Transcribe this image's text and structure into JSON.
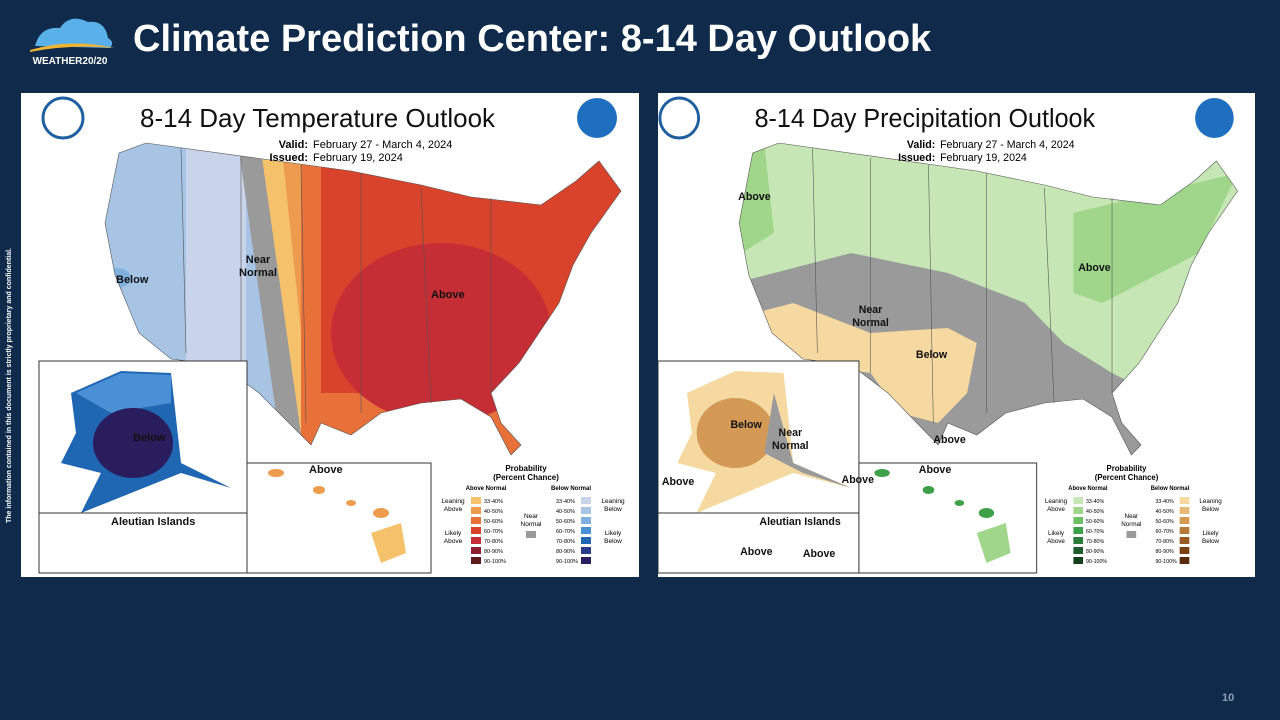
{
  "header": {
    "logo": "WEATHER20/20",
    "title": "Climate Prediction Center: 8-14 Day Outlook"
  },
  "side_note": "The information contained in this document is strictly proprietary and confidential.",
  "page_number": "10",
  "maps": [
    {
      "title": "8-14 Day Temperature Outlook",
      "valid_label": "Valid:",
      "valid": "February 27 - March 4, 2024",
      "issued_label": "Issued:",
      "issued": "February 19, 2024",
      "labels": [
        [
          "Below"
        ],
        [
          "Near",
          "Normal"
        ],
        [
          "Above"
        ],
        [
          "Below"
        ],
        [
          "Above"
        ],
        [
          "Aleutian Islands"
        ]
      ],
      "legend": {
        "title": "Probability",
        "subtitle": "(Percent Chance)",
        "above_header": "Above Normal",
        "below_header": "Below Normal",
        "leaning_above": [
          "Leaning",
          "Above"
        ],
        "likely_above": [
          "Likely",
          "Above"
        ],
        "near": [
          "Near",
          "Normal"
        ],
        "leaning_below": [
          "Leaning",
          "Below"
        ],
        "likely_below": [
          "Likely",
          "Below"
        ],
        "ranges": [
          "33-40%",
          "40-50%",
          "50-60%",
          "60-70%",
          "70-80%",
          "80-90%",
          "90-100%"
        ],
        "above_colors": [
          "#f5c26b",
          "#ef9b4d",
          "#e8713a",
          "#d9432b",
          "#c62e35",
          "#8f1f2e",
          "#5c1a1a"
        ],
        "below_colors": [
          "#c9d3ea",
          "#a7c4e5",
          "#7fb0e0",
          "#4a90d4",
          "#1f66b3",
          "#2b3b8c",
          "#2a1d5e"
        ],
        "near_color": "#9a9a9a"
      }
    },
    {
      "title": "8-14 Day Precipitation Outlook",
      "valid_label": "Valid:",
      "valid": "February 27 - March 4, 2024",
      "issued_label": "Issued:",
      "issued": "February 19, 2024",
      "labels": [
        [
          "Above"
        ],
        [
          "Near",
          "Normal"
        ],
        [
          "Below"
        ],
        [
          "Above"
        ],
        [
          "Above"
        ],
        [
          "Below"
        ],
        [
          "Near",
          "Normal"
        ],
        [
          "Above"
        ],
        [
          "Above"
        ],
        [
          "Above"
        ],
        [
          "Aleutian Islands"
        ],
        [
          "Above"
        ],
        [
          "Above"
        ]
      ],
      "legend": {
        "title": "Probability",
        "subtitle": "(Percent Chance)",
        "above_header": "Above Normal",
        "below_header": "Below Normal",
        "leaning_above": [
          "Leaning",
          "Above"
        ],
        "likely_above": [
          "Likely",
          "Above"
        ],
        "near": [
          "Near",
          "Normal"
        ],
        "leaning_below": [
          "Leaning",
          "Below"
        ],
        "likely_below": [
          "Likely",
          "Below"
        ],
        "ranges": [
          "33-40%",
          "40-50%",
          "50-60%",
          "60-70%",
          "70-80%",
          "80-90%",
          "90-100%"
        ],
        "above_colors": [
          "#c6e7b5",
          "#9fd68a",
          "#6fc065",
          "#3fa04a",
          "#2a7d3a",
          "#1e5e2c",
          "#14401e"
        ],
        "below_colors": [
          "#f5d9a0",
          "#e8b877",
          "#d49a55",
          "#b87a38",
          "#9a5a25",
          "#7a4016",
          "#5a2a0c"
        ],
        "near_color": "#9a9a9a"
      }
    }
  ]
}
